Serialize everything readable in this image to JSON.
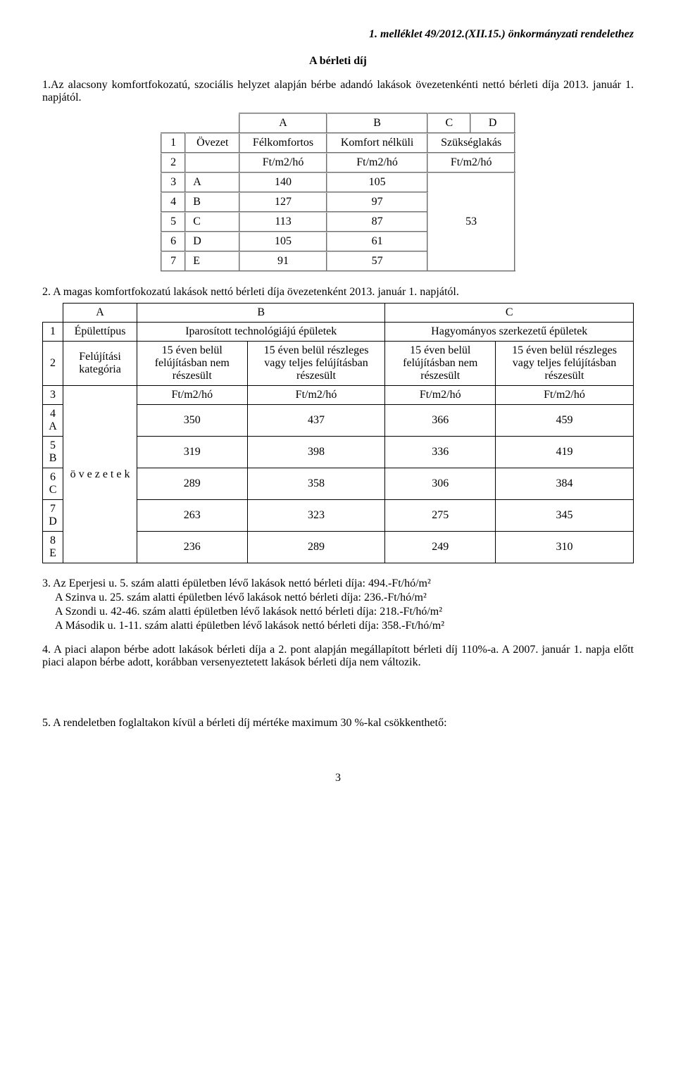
{
  "header": "1. melléklet 49/2012.(XII.15.) önkormányzati rendelethez",
  "title": "A bérleti díj",
  "intro": "1.Az alacsony komfortfokozatú, szociális helyzet alapján bérbe adandó lakások övezetenkénti nettó bérleti díja 2013. január 1. napjától.",
  "table1": {
    "colA": "A",
    "colB": "B",
    "colC": "C",
    "colD": "D",
    "r1_num": "1",
    "r1_ovezet": "Övezet",
    "r1_felkomf": "Félkomfortos",
    "r1_komfort": "Komfort nélküli",
    "r1_szuk": "Szükséglakás",
    "r2_num": "2",
    "r2_unit1": "Ft/m2/hó",
    "r2_unit2": "Ft/m2/hó",
    "r2_unit3": "Ft/m2/hó",
    "r3_num": "3",
    "r3_z": "A",
    "r3_v1": "140",
    "r3_v2": "105",
    "r4_num": "4",
    "r4_z": "B",
    "r4_v1": "127",
    "r4_v2": "97",
    "r5_num": "5",
    "r5_z": "C",
    "r5_v1": "113",
    "r5_v2": "87",
    "r6_num": "6",
    "r6_z": "D",
    "r6_v1": "105",
    "r6_v2": "61",
    "r7_num": "7",
    "r7_z": "E",
    "r7_v1": "91",
    "r7_v2": "57",
    "merged": "53"
  },
  "para2": "2. A magas komfortfokozatú lakások nettó bérleti díja övezetenként 2013. január 1. napjától.",
  "table2": {
    "hA": "A",
    "hB": "B",
    "hC": "C",
    "r1_num": "1",
    "r1_type": "Épülettípus",
    "r1_ipar": "Iparosított technológiájú épületek",
    "r1_hagy": "Hagyományos szerkezetű épületek",
    "r2_num": "2",
    "r2_cat": "Felújítási kategória",
    "r2_c1": "15 éven belül felújításban nem részesült",
    "r2_c2": "15 éven belül részleges vagy teljes felújításban részesült",
    "r2_c3": "15 éven belül felújításban nem részesült",
    "r2_c4": "15 éven belül részleges vagy teljes felújításban részesült",
    "r3_num": "3",
    "ovezet": "ö v e z e t e k",
    "unit": "Ft/m2/hó",
    "rows": [
      {
        "n": "4",
        "z": "A",
        "v": [
          "350",
          "437",
          "366",
          "459"
        ]
      },
      {
        "n": "5",
        "z": "B",
        "v": [
          "319",
          "398",
          "336",
          "419"
        ]
      },
      {
        "n": "6",
        "z": "C",
        "v": [
          "289",
          "358",
          "306",
          "384"
        ]
      },
      {
        "n": "7",
        "z": "D",
        "v": [
          "263",
          "323",
          "275",
          "345"
        ]
      },
      {
        "n": "8",
        "z": "E",
        "v": [
          "236",
          "289",
          "249",
          "310"
        ]
      }
    ],
    "n4": "4",
    "n5": "5",
    "n6": "6",
    "n7": "7",
    "n8": "8",
    "zA": "A",
    "zB": "B",
    "zC": "C",
    "zD": "D",
    "zE": "E",
    "vA1": "350",
    "vA2": "437",
    "vA3": "366",
    "vA4": "459",
    "vB1": "319",
    "vB2": "398",
    "vB3": "336",
    "vB4": "419",
    "vC1": "289",
    "vC2": "358",
    "vC3": "306",
    "vC4": "384",
    "vD1": "263",
    "vD2": "323",
    "vD3": "275",
    "vD4": "345",
    "vE1": "236",
    "vE2": "289",
    "vE3": "249",
    "vE4": "310"
  },
  "notes3": {
    "l1": "3. Az Eperjesi u. 5. szám alatti épületben lévő lakások nettó bérleti díja: 494.-Ft/hó/m²",
    "l2": "A Szinva u. 25. szám alatti épületben lévő lakások nettó bérleti díja: 236.-Ft/hó/m²",
    "l3": "A Szondi u. 42-46. szám alatti épületben lévő lakások nettó bérleti díja: 218.-Ft/hó/m²",
    "l4": "A Második u. 1-11. szám alatti épületben lévő lakások nettó bérleti díja: 358.-Ft/hó/m²"
  },
  "para4": "4. A piaci alapon bérbe adott lakások bérleti díja a 2. pont alapján megállapított bérleti díj 110%-a. A 2007. január 1. napja előtt piaci alapon bérbe adott, korábban versenyeztetett lakások bérleti díja nem változik.",
  "para5": "5. A rendeletben foglaltakon kívül a bérleti díj mértéke maximum 30 %-kal csökkenthető:",
  "pagenum": "3"
}
